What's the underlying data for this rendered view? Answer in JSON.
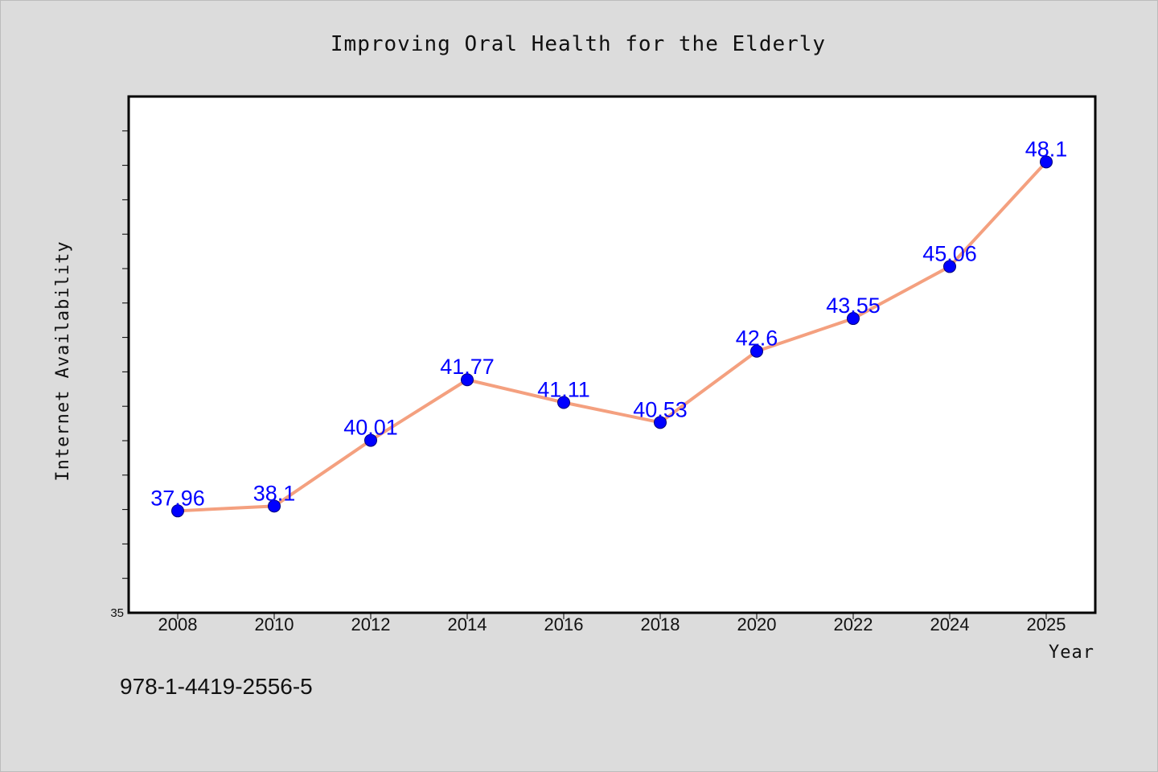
{
  "chart_data": {
    "type": "line",
    "title": "Improving Oral Health for the Elderly",
    "xlabel": "Year",
    "ylabel": "Internet Availability",
    "categories": [
      "2008",
      "2010",
      "2012",
      "2014",
      "2016",
      "2018",
      "2020",
      "2022",
      "2024",
      "2025"
    ],
    "series": [
      {
        "values": [
          37.96,
          38.1,
          40.01,
          41.77,
          41.11,
          40.53,
          42.6,
          43.55,
          45.06,
          48.1
        ],
        "data_labels": [
          "37.96",
          "38.1",
          "40.01",
          "41.77",
          "41.11",
          "40.53",
          "42.6",
          "43.55",
          "45.06",
          "48.1"
        ]
      }
    ],
    "ylim": [
      35,
      50
    ],
    "ytick_label": "35",
    "grid": false,
    "line_color": "#f4a07f",
    "marker_color": "#0000ff",
    "label_color": "#0000ff"
  },
  "footer": {
    "isbn": "978-1-4419-2556-5"
  }
}
